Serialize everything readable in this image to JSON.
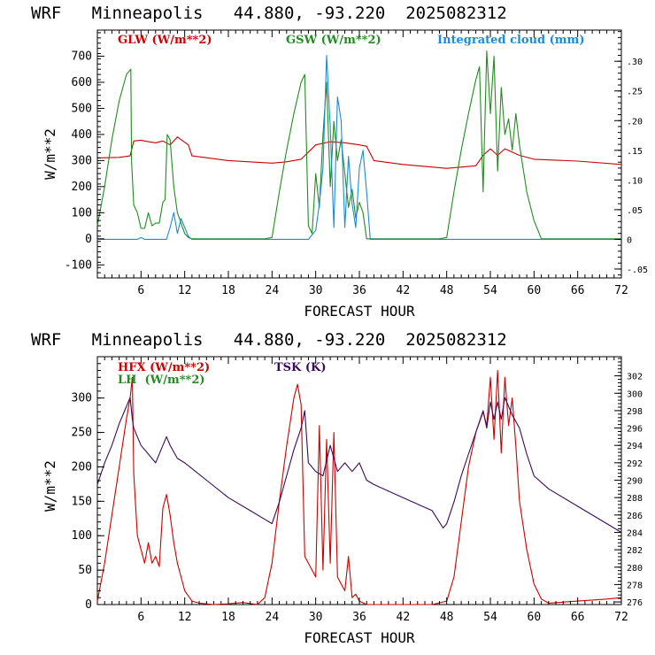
{
  "chart_data": [
    {
      "type": "line",
      "title": "WRF   Minneapolis   44.880, -93.220  2025082312",
      "xlabel": "FORECAST HOUR",
      "ylabel": "W/m**2",
      "xlim": [
        0,
        72
      ],
      "ylim": [
        -150,
        800
      ],
      "y2lim": [
        -0.065,
        0.3525
      ],
      "x_ticks": [
        6,
        12,
        18,
        24,
        30,
        36,
        42,
        48,
        54,
        60,
        66,
        72
      ],
      "y_ticks": [
        -100,
        0,
        100,
        200,
        300,
        400,
        500,
        600,
        700
      ],
      "y2_ticks": [
        -0.05,
        0,
        0.05,
        0.1,
        0.15,
        0.2,
        0.25,
        0.3
      ],
      "y2_tick_labels": [
        "-.05",
        "0",
        ".05",
        ".10",
        ".15",
        ".20",
        ".25",
        ".30"
      ],
      "series": [
        {
          "name": "GLW (W/m**2)",
          "color": "#cc0000",
          "axis": "left",
          "x": [
            0,
            3,
            4.5,
            5,
            6,
            7,
            8,
            9,
            10,
            11,
            12,
            12.5,
            13,
            18,
            24,
            26,
            28,
            30,
            32,
            34,
            36,
            37,
            38,
            42,
            48,
            52,
            53,
            54,
            55,
            56,
            58,
            60,
            66,
            72
          ],
          "y": [
            310,
            312,
            318,
            375,
            378,
            372,
            368,
            375,
            360,
            390,
            370,
            360,
            318,
            300,
            290,
            295,
            305,
            360,
            372,
            368,
            360,
            355,
            300,
            285,
            270,
            280,
            320,
            345,
            320,
            345,
            320,
            305,
            298,
            285
          ]
        },
        {
          "name": "GSW (W/m**2)",
          "color": "#228b22",
          "axis": "left",
          "x": [
            0,
            1,
            2,
            3,
            4,
            4.6,
            4.7,
            5,
            5.5,
            6,
            6.5,
            7,
            7.5,
            8,
            8.5,
            9,
            9.3,
            9.6,
            10,
            10.5,
            11,
            11.5,
            12,
            12.5,
            13,
            23,
            24,
            25,
            26,
            27,
            28,
            28.5,
            29,
            29.5,
            30,
            30.5,
            31,
            31.5,
            32,
            32.5,
            33,
            33.5,
            34,
            34.5,
            35,
            35.5,
            36,
            36.5,
            37,
            47,
            48,
            49,
            50,
            51,
            52,
            52.5,
            53,
            53.5,
            54,
            54.5,
            55,
            55.5,
            56,
            56.5,
            57,
            57.5,
            58,
            59,
            60,
            61,
            72
          ],
          "y": [
            50,
            200,
            380,
            530,
            630,
            650,
            300,
            130,
            100,
            40,
            40,
            100,
            50,
            60,
            60,
            140,
            150,
            400,
            380,
            200,
            100,
            60,
            20,
            5,
            0,
            0,
            5,
            180,
            340,
            480,
            600,
            630,
            50,
            20,
            250,
            120,
            400,
            600,
            200,
            450,
            300,
            380,
            250,
            120,
            190,
            80,
            140,
            100,
            0,
            0,
            5,
            180,
            340,
            480,
            610,
            660,
            180,
            720,
            480,
            700,
            260,
            580,
            400,
            460,
            340,
            480,
            360,
            180,
            70,
            0,
            0
          ]
        },
        {
          "name": "Integrated cloud (mm)",
          "color": "#1e8ad6",
          "axis": "right",
          "x": [
            0,
            5.5,
            6,
            6.5,
            7,
            9.5,
            10,
            10.5,
            11,
            11.5,
            12,
            12.5,
            13,
            29,
            30,
            30.5,
            31,
            31.5,
            32,
            32.5,
            33,
            33.5,
            34,
            34.5,
            35,
            35.5,
            36,
            36.5,
            37,
            37.5,
            72
          ],
          "y": [
            0,
            0,
            0.003,
            0,
            0,
            0,
            0.02,
            0.045,
            0.01,
            0.035,
            0.02,
            0.005,
            0,
            0,
            0.015,
            0.06,
            0.12,
            0.31,
            0.19,
            0.02,
            0.24,
            0.2,
            0.02,
            0.14,
            0.06,
            0.02,
            0.12,
            0.15,
            0.08,
            0,
            0
          ]
        }
      ]
    },
    {
      "type": "line",
      "title": "WRF   Minneapolis   44.880, -93.220  2025082312",
      "xlabel": "FORECAST HOUR",
      "ylabel": "W/m**2",
      "xlim": [
        0,
        72
      ],
      "ylim": [
        0,
        360
      ],
      "y2lim": [
        275.7,
        304.2
      ],
      "x_ticks": [
        6,
        12,
        18,
        24,
        30,
        36,
        42,
        48,
        54,
        60,
        66,
        72
      ],
      "y_ticks": [
        0,
        50,
        100,
        150,
        200,
        250,
        300
      ],
      "y2_ticks": [
        276,
        278,
        280,
        282,
        284,
        286,
        288,
        290,
        292,
        294,
        296,
        298,
        300,
        302
      ],
      "series": [
        {
          "name": "HFX (W/m**2)",
          "color": "#cc0000",
          "axis": "left",
          "x": [
            0,
            1,
            2,
            3,
            4,
            4.5,
            4.8,
            5,
            5.5,
            6,
            6.5,
            7,
            7.5,
            8,
            8.5,
            9,
            9.5,
            10,
            10.5,
            11,
            11.5,
            12,
            13,
            14,
            16,
            18,
            20,
            22,
            23,
            24,
            25,
            26,
            27,
            27.5,
            28,
            28.5,
            29,
            29.5,
            30,
            30.5,
            31,
            31.5,
            32,
            32.5,
            33,
            33.5,
            34,
            34.5,
            35,
            35.5,
            36,
            37,
            38,
            39,
            42,
            46,
            48,
            49,
            50,
            51,
            52,
            53,
            53.5,
            54,
            54.5,
            55,
            55.5,
            56,
            56.5,
            57,
            57.5,
            58,
            59,
            60,
            61,
            62,
            66,
            70,
            72
          ],
          "y": [
            5,
            60,
            130,
            200,
            270,
            300,
            330,
            190,
            100,
            80,
            60,
            90,
            60,
            70,
            55,
            140,
            160,
            130,
            90,
            60,
            40,
            20,
            5,
            2,
            0,
            1,
            3,
            0,
            10,
            60,
            150,
            230,
            300,
            320,
            290,
            70,
            60,
            50,
            40,
            260,
            50,
            240,
            60,
            250,
            40,
            30,
            20,
            70,
            10,
            15,
            5,
            0,
            0,
            0,
            0,
            0,
            5,
            40,
            120,
            200,
            250,
            280,
            260,
            330,
            240,
            340,
            220,
            330,
            260,
            300,
            230,
            150,
            80,
            30,
            8,
            2,
            5,
            8,
            10
          ]
        },
        {
          "name": "LH  (W/m**2)",
          "color": "#228b22",
          "axis": "left",
          "x": [],
          "y": []
        },
        {
          "name": "TSK (K)",
          "color": "#3a0a5a",
          "axis": "right",
          "x": [
            0,
            1,
            2,
            3,
            4,
            4.5,
            4.8,
            5,
            5.5,
            6,
            7,
            8,
            9,
            9.5,
            10,
            11,
            12,
            15,
            18,
            21,
            23,
            24,
            25,
            26,
            27,
            28,
            28.5,
            29,
            30,
            31,
            32,
            33,
            34,
            35,
            36,
            37,
            38,
            42,
            46,
            47.5,
            48,
            49,
            50,
            51,
            52,
            53,
            53.5,
            54,
            54.5,
            55,
            55.5,
            56,
            57,
            58,
            59,
            60,
            62,
            66,
            70,
            72
          ],
          "y": [
            289.5,
            292,
            294,
            296.5,
            298.5,
            299.5,
            297,
            296,
            295,
            294,
            293,
            292,
            294,
            295,
            294,
            292.5,
            292,
            290,
            288,
            286.5,
            285.5,
            285,
            287.5,
            290.5,
            293.5,
            296,
            298,
            292,
            291,
            290.5,
            294,
            291,
            292,
            291,
            292,
            290,
            289.5,
            288,
            286.5,
            284.5,
            285,
            287.5,
            290.5,
            293,
            295.5,
            298,
            296,
            299,
            297,
            299,
            297,
            299.5,
            297.5,
            296,
            293,
            290.5,
            289,
            287,
            285,
            284
          ]
        }
      ]
    }
  ]
}
